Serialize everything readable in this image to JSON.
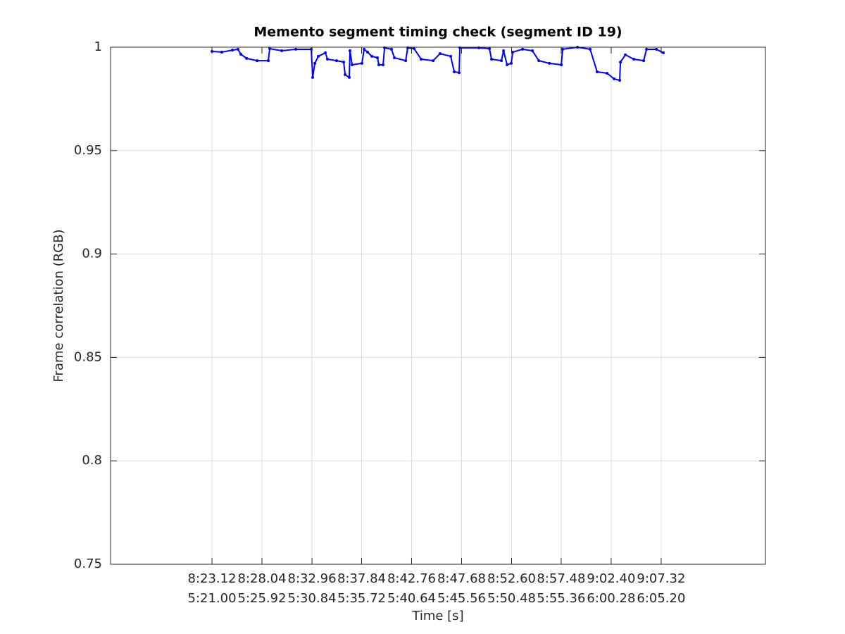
{
  "chart_data": {
    "type": "line",
    "title": "Memento segment timing check (segment ID 19)",
    "xlabel": "Time [s]",
    "ylabel": "Frame correlation (RGB)",
    "grid": true,
    "xlim": [
      493.14,
      557.58
    ],
    "ylim": [
      0.75,
      1
    ],
    "yticks": [
      0.75,
      0.8,
      0.85,
      0.9,
      0.95,
      1
    ],
    "xticks": [
      {
        "value": 503.12,
        "label": [
          "8:23.12",
          "5:21.00"
        ]
      },
      {
        "value": 508.04,
        "label": [
          "8:28.04",
          "5:25.92"
        ]
      },
      {
        "value": 512.96,
        "label": [
          "8:32.96",
          "5:30.84"
        ]
      },
      {
        "value": 517.84,
        "label": [
          "8:37.84",
          "5:35.72"
        ]
      },
      {
        "value": 522.76,
        "label": [
          "8:42.76",
          "5:40.64"
        ]
      },
      {
        "value": 527.68,
        "label": [
          "8:47.68",
          "5:45.56"
        ]
      },
      {
        "value": 532.6,
        "label": [
          "8:52.60",
          "5:50.48"
        ]
      },
      {
        "value": 537.48,
        "label": [
          "8:57.48",
          "5:55.36"
        ]
      },
      {
        "value": 542.4,
        "label": [
          "9:02.40",
          "6:00.28"
        ]
      },
      {
        "value": 547.32,
        "label": [
          "9:07.32",
          "6:05.20"
        ]
      }
    ],
    "series": [
      {
        "color": "#0000ff",
        "x": [
          503.12,
          504.09,
          505.13,
          505.68,
          505.96,
          506.52,
          507.56,
          508.66,
          508.8,
          509.98,
          511.37,
          512.89,
          513.03,
          513.24,
          513.58,
          514.28,
          514.48,
          515.38,
          516.08,
          516.22,
          516.63,
          516.7,
          516.91,
          517.88,
          518.09,
          518.43,
          518.85,
          519.4,
          519.54,
          519.96,
          520.1,
          520.79,
          521.07,
          522.18,
          522.38,
          523.01,
          523.7,
          524.88,
          525.57,
          526.61,
          526.96,
          527.44,
          527.51,
          529.38,
          530.42,
          530.63,
          531.6,
          531.81,
          532.16,
          532.57,
          532.71,
          533.68,
          534.65,
          535.28,
          536.32,
          537.49,
          537.63,
          539.09,
          540.33,
          541.02,
          542.0,
          542.69,
          543.24,
          543.31,
          543.8,
          544.63,
          545.6,
          545.88,
          546.85,
          547.54
        ],
        "values": [
          0.998,
          0.9976,
          0.9986,
          0.999,
          0.9966,
          0.9946,
          0.9935,
          0.9935,
          0.9993,
          0.9983,
          0.999,
          0.999,
          0.9854,
          0.9922,
          0.9956,
          0.9973,
          0.9942,
          0.9935,
          0.9928,
          0.9867,
          0.9854,
          0.9983,
          0.9915,
          0.9922,
          0.999,
          0.9976,
          0.9956,
          0.9949,
          0.9915,
          0.9915,
          0.9997,
          0.999,
          0.9949,
          0.9935,
          0.9997,
          0.9993,
          0.9942,
          0.9935,
          0.9969,
          0.9956,
          0.9881,
          0.9877,
          0.9997,
          0.9997,
          0.9993,
          0.9942,
          0.9935,
          0.9983,
          0.9915,
          0.9922,
          0.9976,
          0.999,
          0.9983,
          0.9935,
          0.9922,
          0.9915,
          0.999,
          1.0,
          0.999,
          0.9881,
          0.9874,
          0.9847,
          0.984,
          0.9928,
          0.9963,
          0.9942,
          0.9935,
          0.999,
          0.999,
          0.9973
        ]
      }
    ]
  }
}
